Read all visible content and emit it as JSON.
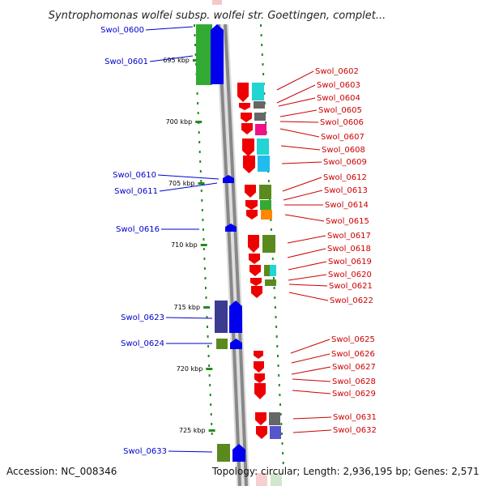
{
  "title": "Syntrophomonas wolfei subsp. wolfei str. Goettingen, complet...",
  "footer": {
    "accession": "Accession: NC_008346",
    "topology": "Topology: circular; Length: 2,936,195 bp; Genes: 2,571"
  },
  "colors": {
    "left_label": "#0000cc",
    "right_label": "#cc0000",
    "backbone": "#888888",
    "tick": "#228b22"
  },
  "ticks": [
    {
      "label": "695 kbp"
    },
    {
      "label": "700 kbp"
    },
    {
      "label": "705 kbp"
    },
    {
      "label": "710 kbp"
    },
    {
      "label": "715 kbp"
    },
    {
      "label": "720 kbp"
    },
    {
      "label": "725 kbp"
    }
  ],
  "left_genes": [
    {
      "id": "Swol_0600"
    },
    {
      "id": "Swol_0601"
    },
    {
      "id": "Swol_0610"
    },
    {
      "id": "Swol_0611"
    },
    {
      "id": "Swol_0616"
    },
    {
      "id": "Swol_0623"
    },
    {
      "id": "Swol_0624"
    },
    {
      "id": "Swol_0633"
    }
  ],
  "right_genes": [
    {
      "id": "Swol_0602"
    },
    {
      "id": "Swol_0603"
    },
    {
      "id": "Swol_0604"
    },
    {
      "id": "Swol_0605"
    },
    {
      "id": "Swol_0606"
    },
    {
      "id": "Swol_0607"
    },
    {
      "id": "Swol_0608"
    },
    {
      "id": "Swol_0609"
    },
    {
      "id": "Swol_0612"
    },
    {
      "id": "Swol_0613"
    },
    {
      "id": "Swol_0614"
    },
    {
      "id": "Swol_0615"
    },
    {
      "id": "Swol_0617"
    },
    {
      "id": "Swol_0618"
    },
    {
      "id": "Swol_0619"
    },
    {
      "id": "Swol_0620"
    },
    {
      "id": "Swol_0621"
    },
    {
      "id": "Swol_0622"
    },
    {
      "id": "Swol_0625"
    },
    {
      "id": "Swol_0626"
    },
    {
      "id": "Swol_0627"
    },
    {
      "id": "Swol_0628"
    },
    {
      "id": "Swol_0629"
    },
    {
      "id": "Swol_0631"
    },
    {
      "id": "Swol_0632"
    }
  ]
}
